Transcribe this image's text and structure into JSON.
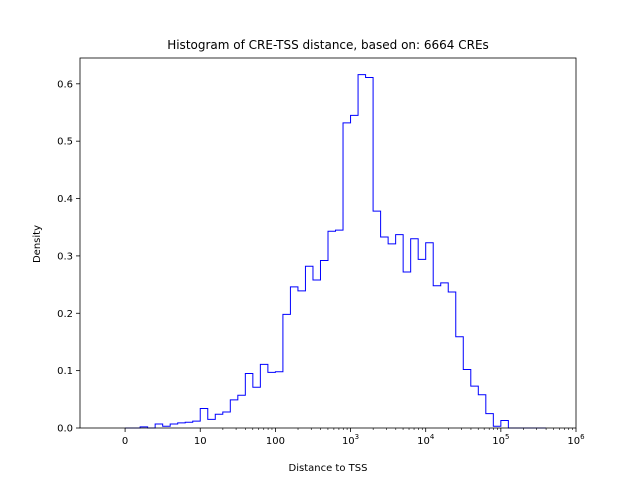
{
  "chart_data": {
    "type": "histogram",
    "title": "Histogram of CRE-TSS distance, based on: 6664 CREs",
    "xlabel": "Distance to TSS",
    "ylabel": "Density",
    "xscale": "symlog",
    "xlim": [
      -0.6,
      6.0
    ],
    "ylim": [
      0,
      0.645
    ],
    "grid": false,
    "x_ticks": [
      {
        "label": "0",
        "base": "",
        "exp": "",
        "pos": 0
      },
      {
        "label": "10",
        "base": "",
        "exp": "",
        "pos": 1
      },
      {
        "label": "100",
        "base": "",
        "exp": "",
        "pos": 2
      },
      {
        "label": "",
        "base": "10",
        "exp": "3",
        "pos": 3
      },
      {
        "label": "",
        "base": "10",
        "exp": "4",
        "pos": 4
      },
      {
        "label": "",
        "base": "10",
        "exp": "5",
        "pos": 5
      },
      {
        "label": "",
        "base": "10",
        "exp": "6",
        "pos": 6
      }
    ],
    "y_ticks": [
      "0.0",
      "0.1",
      "0.2",
      "0.3",
      "0.4",
      "0.5",
      "0.6"
    ],
    "series": [
      {
        "color": "#0000ff",
        "bin_edges_symlog": [
          0.0,
          0.1,
          0.2,
          0.3,
          0.4,
          0.5,
          0.6,
          0.7,
          0.8,
          0.9,
          1.0,
          1.1,
          1.2,
          1.3,
          1.4,
          1.5,
          1.6,
          1.7,
          1.8,
          1.9,
          2.0,
          2.1,
          2.2,
          2.3,
          2.4,
          2.5,
          2.6,
          2.7,
          2.8,
          2.9,
          3.0,
          3.1,
          3.2,
          3.3,
          3.4,
          3.5,
          3.6,
          3.7,
          3.8,
          3.9,
          4.0,
          4.1,
          4.2,
          4.3,
          4.4,
          4.5,
          4.6,
          4.7,
          4.8,
          4.9,
          5.0,
          5.1,
          5.2,
          5.3,
          5.4,
          5.5,
          5.6
        ],
        "density": [
          0.0,
          0.0,
          0.002,
          0.0,
          0.007,
          0.003,
          0.007,
          0.009,
          0.01,
          0.012,
          0.034,
          0.015,
          0.024,
          0.028,
          0.049,
          0.057,
          0.095,
          0.071,
          0.111,
          0.097,
          0.098,
          0.198,
          0.246,
          0.239,
          0.282,
          0.258,
          0.292,
          0.343,
          0.345,
          0.532,
          0.545,
          0.616,
          0.611,
          0.378,
          0.333,
          0.321,
          0.337,
          0.272,
          0.33,
          0.294,
          0.323,
          0.248,
          0.253,
          0.237,
          0.159,
          0.102,
          0.073,
          0.058,
          0.025,
          0.003,
          0.013,
          0.0,
          0.0,
          0.0,
          0.0,
          0.0
        ]
      }
    ]
  }
}
